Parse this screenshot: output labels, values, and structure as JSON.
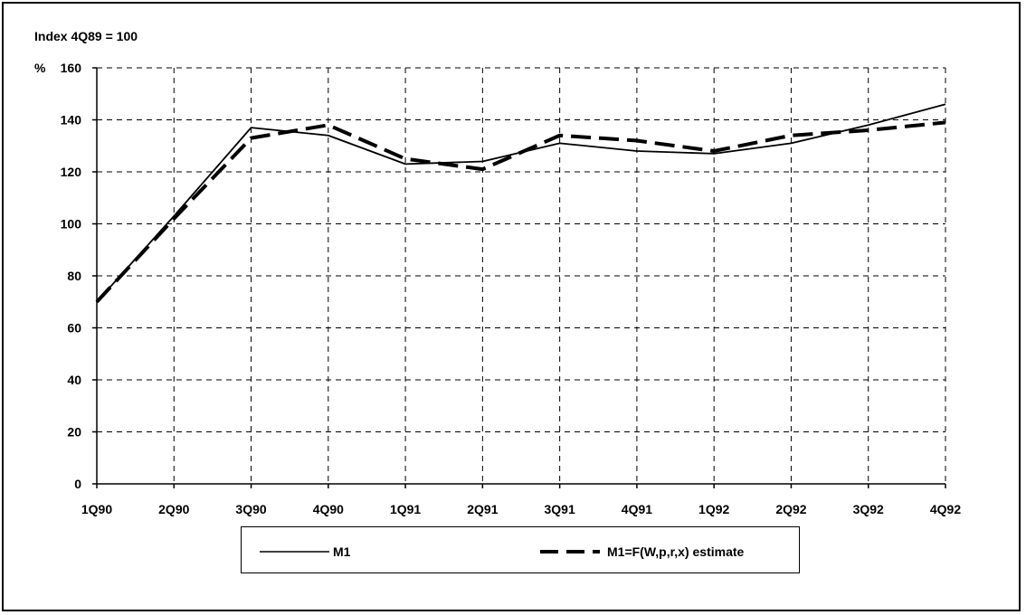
{
  "chart_data": {
    "type": "line",
    "note_label": "Index 4Q89 = 100",
    "ylabel": "%",
    "categories": [
      "1Q90",
      "2Q90",
      "3Q90",
      "4Q90",
      "1Q91",
      "2Q91",
      "3Q91",
      "4Q91",
      "1Q92",
      "2Q92",
      "3Q92",
      "4Q92"
    ],
    "ylim": [
      0,
      160
    ],
    "yticks": [
      0,
      20,
      40,
      60,
      80,
      100,
      120,
      140,
      160
    ],
    "grid": true,
    "legend_position": "bottom",
    "series": [
      {
        "name": "M1",
        "style": "solid",
        "color": "#000000",
        "values": [
          70,
          103,
          137,
          134,
          123,
          124,
          131,
          128,
          127,
          131,
          138,
          146
        ]
      },
      {
        "name": "M1=F(W,p,r,x) estimate",
        "style": "dashed",
        "color": "#000000",
        "values": [
          70,
          102,
          133,
          138,
          125,
          121,
          134,
          132,
          128,
          134,
          136,
          139
        ]
      }
    ]
  }
}
